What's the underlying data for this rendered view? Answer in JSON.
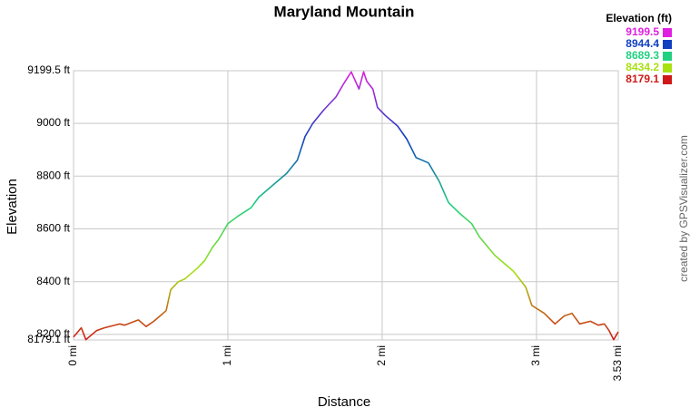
{
  "chart_data": {
    "type": "line",
    "title": "Maryland Mountain",
    "x_label": "Distance",
    "y_label": "Elevation",
    "credit": "created by GPSVisualizer.com",
    "legend_title": "Elevation (ft)",
    "color_scale": [
      {
        "value": 9199.5,
        "color": "#e020e0"
      },
      {
        "value": 8944.4,
        "color": "#1040c0"
      },
      {
        "value": 8689.3,
        "color": "#20d080"
      },
      {
        "value": 8434.2,
        "color": "#a8e010"
      },
      {
        "value": 8179.1,
        "color": "#d01818"
      }
    ],
    "x": [
      0,
      0.05,
      0.08,
      0.1,
      0.15,
      0.2,
      0.3,
      0.33,
      0.42,
      0.47,
      0.52,
      0.57,
      0.6,
      0.63,
      0.68,
      0.72,
      0.8,
      0.85,
      0.9,
      0.94,
      0.98,
      1.0,
      1.07,
      1.15,
      1.2,
      1.3,
      1.38,
      1.45,
      1.5,
      1.55,
      1.62,
      1.7,
      1.75,
      1.8,
      1.85,
      1.88,
      1.9,
      1.94,
      1.97,
      2.02,
      2.1,
      2.16,
      2.22,
      2.3,
      2.37,
      2.43,
      2.5,
      2.58,
      2.63,
      2.73,
      2.85,
      2.93,
      2.97,
      3.05,
      3.12,
      3.18,
      3.23,
      3.28,
      3.35,
      3.4,
      3.44,
      3.47,
      3.5,
      3.53
    ],
    "values": [
      8190,
      8225,
      8180,
      8190,
      8215,
      8225,
      8240,
      8235,
      8255,
      8230,
      8250,
      8275,
      8290,
      8370,
      8400,
      8410,
      8450,
      8480,
      8530,
      8560,
      8600,
      8620,
      8650,
      8680,
      8720,
      8770,
      8810,
      8860,
      8950,
      9000,
      9050,
      9100,
      9150,
      9195,
      9130,
      9195,
      9160,
      9130,
      9060,
      9030,
      8990,
      8940,
      8870,
      8850,
      8780,
      8700,
      8660,
      8620,
      8570,
      8500,
      8440,
      8380,
      8310,
      8280,
      8240,
      8270,
      8280,
      8240,
      8250,
      8235,
      8240,
      8215,
      8180,
      8210
    ],
    "xlim": [
      0,
      3.53
    ],
    "xticks": [
      {
        "value": 0,
        "label": "0 mi"
      },
      {
        "value": 1,
        "label": "1 mi"
      },
      {
        "value": 2,
        "label": "2 mi"
      },
      {
        "value": 3,
        "label": "3 mi"
      },
      {
        "value": 3.53,
        "label": "3.53 mi"
      }
    ],
    "ylim": [
      8179.1,
      9199.5
    ],
    "yticks": [
      {
        "value": 8179.1,
        "label": "8179.1 ft"
      },
      {
        "value": 8200,
        "label": "8200 ft"
      },
      {
        "value": 8400,
        "label": "8400 ft"
      },
      {
        "value": 8600,
        "label": "8600 ft"
      },
      {
        "value": 8800,
        "label": "8800 ft"
      },
      {
        "value": 9000,
        "label": "9000 ft"
      },
      {
        "value": 9199.5,
        "label": "9199.5 ft"
      }
    ],
    "grid": true
  }
}
